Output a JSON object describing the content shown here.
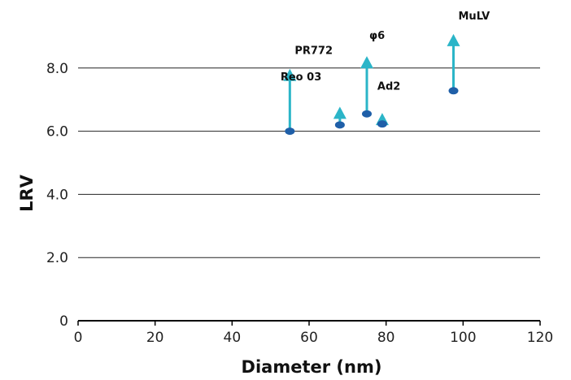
{
  "chart_data": {
    "type": "scatter",
    "xlabel": "Diameter (nm)",
    "ylabel": "LRV",
    "xlim": [
      0,
      120
    ],
    "ylim": [
      0,
      10
    ],
    "x_ticks": [
      0,
      20,
      40,
      60,
      80,
      100,
      120
    ],
    "x_tick_labels": [
      "0",
      "20",
      "40",
      "60",
      "80",
      "100",
      "120"
    ],
    "y_ticks": [
      0,
      2,
      4,
      6,
      8
    ],
    "y_tick_labels": [
      "0",
      "2.0",
      "4.0",
      "6.0",
      "8.0"
    ],
    "grid": "horizontal",
    "marker_color": "#1f5fa8",
    "arrow_color": "#2bb5c8",
    "points": [
      {
        "label": "PR772",
        "diameter": 55,
        "lrv": 6.0,
        "lrv_min": 7.9
      },
      {
        "label": "Reo 03",
        "diameter": 68,
        "lrv": 6.2,
        "lrv_min": 6.7
      },
      {
        "label": "φ6",
        "diameter": 75,
        "lrv": 6.55,
        "lrv_min": 8.3
      },
      {
        "label": "Ad2",
        "diameter": 79,
        "lrv": 6.23,
        "lrv_min": 6.5
      },
      {
        "label": "MuLV",
        "diameter": 97.5,
        "lrv": 7.28,
        "lrv_min": 9.0
      }
    ]
  }
}
